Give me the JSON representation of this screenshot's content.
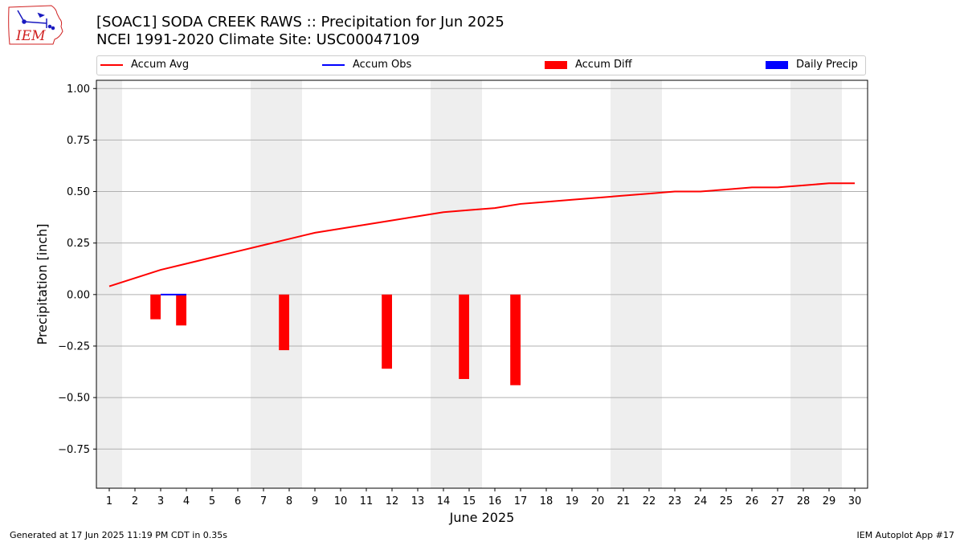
{
  "header": {
    "logo_text": "IEM",
    "title_line1": "[SOAC1] SODA CREEK RAWS :: Precipitation for Jun 2025",
    "title_line2": "NCEI 1991-2020 Climate Site: USC00047109"
  },
  "legend": [
    {
      "label": "Accum Avg",
      "kind": "line",
      "color": "#ff0000"
    },
    {
      "label": "Accum Obs",
      "kind": "line",
      "color": "#0000ff"
    },
    {
      "label": "Accum Diff",
      "kind": "patch",
      "color": "#ff0000"
    },
    {
      "label": "Daily Precip",
      "kind": "patch",
      "color": "#0000ff"
    }
  ],
  "footer": {
    "left": "Generated at 17 Jun 2025 11:19 PM CDT in 0.35s",
    "right": "IEM Autoplot App #17"
  },
  "colors": {
    "avg": "#ff0000",
    "obs": "#0000ff",
    "diff": "#ff0000",
    "precip": "#0000ff",
    "weekend_shade": "#eeeeee",
    "grid": "#b0b0b0"
  },
  "chart_data": {
    "type": "line",
    "xlabel": "June 2025",
    "ylabel": "Precipitation [inch]",
    "xlim": [
      0.5,
      30.5
    ],
    "ylim": [
      -0.94,
      1.04
    ],
    "yticks": [
      -0.75,
      -0.5,
      -0.25,
      0.0,
      0.25,
      0.5,
      0.75,
      1.0
    ],
    "ytick_labels": [
      "−0.75",
      "−0.50",
      "−0.25",
      "0.00",
      "0.25",
      "0.50",
      "0.75",
      "1.00"
    ],
    "x": [
      1,
      2,
      3,
      4,
      5,
      6,
      7,
      8,
      9,
      10,
      11,
      12,
      13,
      14,
      15,
      16,
      17,
      18,
      19,
      20,
      21,
      22,
      23,
      24,
      25,
      26,
      27,
      28,
      29,
      30
    ],
    "weekend_bands": [
      [
        0.5,
        1.5
      ],
      [
        6.5,
        8.5
      ],
      [
        13.5,
        15.5
      ],
      [
        20.5,
        22.5
      ],
      [
        27.5,
        29.5
      ]
    ],
    "grid": true,
    "series": [
      {
        "name": "Accum Avg",
        "kind": "line",
        "x": [
          1,
          2,
          3,
          4,
          5,
          6,
          7,
          8,
          9,
          10,
          11,
          12,
          13,
          14,
          15,
          16,
          17,
          18,
          19,
          20,
          21,
          22,
          23,
          24,
          25,
          26,
          27,
          28,
          29,
          30
        ],
        "values": [
          0.04,
          0.08,
          0.12,
          0.15,
          0.18,
          0.21,
          0.24,
          0.27,
          0.3,
          0.32,
          0.34,
          0.36,
          0.38,
          0.4,
          0.41,
          0.42,
          0.44,
          0.45,
          0.46,
          0.47,
          0.48,
          0.49,
          0.5,
          0.5,
          0.51,
          0.52,
          0.52,
          0.53,
          0.54,
          0.54
        ]
      },
      {
        "name": "Accum Obs",
        "kind": "line",
        "x": [
          3,
          4
        ],
        "values": [
          0.0,
          0.0
        ]
      },
      {
        "name": "Accum Diff",
        "kind": "bar",
        "x": [
          3,
          4,
          8,
          12,
          15,
          17
        ],
        "values": [
          -0.12,
          -0.15,
          -0.27,
          -0.36,
          -0.41,
          -0.44
        ]
      },
      {
        "name": "Daily Precip",
        "kind": "bar",
        "x": [],
        "values": []
      }
    ]
  }
}
